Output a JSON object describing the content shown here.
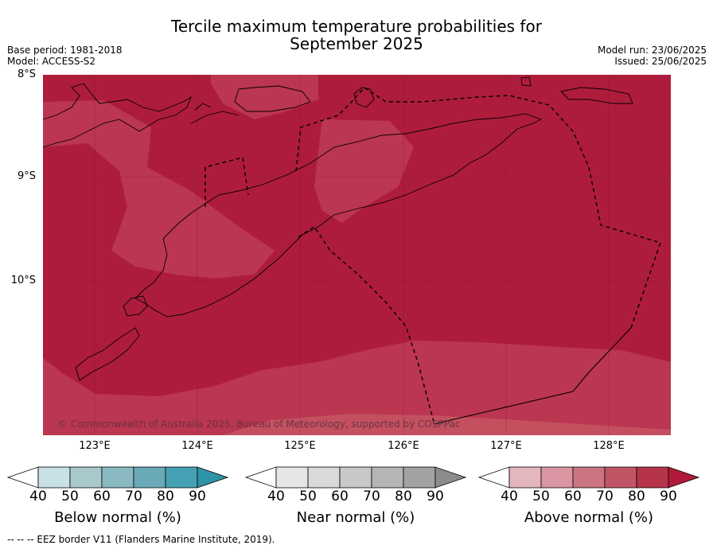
{
  "title_line1": "Tercile maximum temperature probabilities for",
  "title_line2": "September 2025",
  "base_period": "Base period: 1981-2018",
  "model": "Model: ACCESS-S2",
  "model_run": "Model run: 23/06/2025",
  "issued": "Issued: 25/06/2025",
  "lat_labels": [
    "8°S",
    "9°S",
    "10°S"
  ],
  "lon_labels": [
    "123°E",
    "124°E",
    "125°E",
    "126°E",
    "127°E",
    "128°E"
  ],
  "copyright": "© Commonwealth of Australia 2025, Bureau of Meteorology, supported by COSPPac",
  "colorbars": [
    {
      "title": "Below normal (%)",
      "ticks": [
        "40",
        "50",
        "60",
        "70",
        "80",
        "90"
      ],
      "colors": [
        "#ffffff",
        "#c8e1e6",
        "#a8c8cc",
        "#8ab9c2",
        "#6aa9b8",
        "#46a0b3",
        "#2f93a8"
      ]
    },
    {
      "title": "Near normal (%)",
      "ticks": [
        "40",
        "50",
        "60",
        "70",
        "80",
        "90"
      ],
      "colors": [
        "#ffffff",
        "#e6e6e6",
        "#d9d9d9",
        "#c8c8c8",
        "#b5b5b5",
        "#a2a2a2",
        "#8c8c8c"
      ]
    },
    {
      "title": "Above normal (%)",
      "ticks": [
        "40",
        "50",
        "60",
        "70",
        "80",
        "90"
      ],
      "colors": [
        "#ffffff",
        "#e4b6be",
        "#da96a2",
        "#cb7581",
        "#c25565",
        "#b63449",
        "#b0193a"
      ]
    }
  ],
  "map_colors": {
    "high": "#ae1c3c",
    "mid": "#bb3650",
    "ocean_bg": "#ae1c3c"
  },
  "footer": "--  --  -- EEZ border V11 (Flanders Marine Institute, 2019)."
}
